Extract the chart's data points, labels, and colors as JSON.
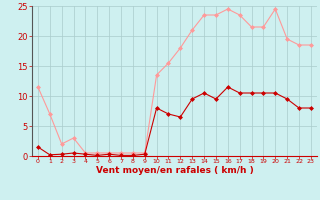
{
  "x": [
    0,
    1,
    2,
    3,
    4,
    5,
    6,
    7,
    8,
    9,
    10,
    11,
    12,
    13,
    14,
    15,
    16,
    17,
    18,
    19,
    20,
    21,
    22,
    23
  ],
  "y_dark": [
    1.5,
    0.2,
    0.3,
    0.5,
    0.3,
    0.1,
    0.3,
    0.1,
    0.1,
    0.3,
    8.0,
    7.0,
    6.5,
    9.5,
    10.5,
    9.5,
    11.5,
    10.5,
    10.5,
    10.5,
    10.5,
    9.5,
    8.0,
    8.0
  ],
  "y_light": [
    11.5,
    7.0,
    2.0,
    3.0,
    0.5,
    0.5,
    0.5,
    0.5,
    0.5,
    0.5,
    13.5,
    15.5,
    18.0,
    21.0,
    23.5,
    23.5,
    24.5,
    23.5,
    21.5,
    21.5,
    24.5,
    19.5,
    18.5,
    18.5
  ],
  "dark_color": "#cc0000",
  "light_color": "#ff9999",
  "bg_color": "#cef0f0",
  "grid_color": "#aacccc",
  "xlabel": "Vent moyen/en rafales ( km/h )",
  "ylim": [
    0,
    25
  ],
  "xlim": [
    -0.5,
    23.5
  ],
  "yticks": [
    0,
    5,
    10,
    15,
    20,
    25
  ],
  "xticks": [
    0,
    1,
    2,
    3,
    4,
    5,
    6,
    7,
    8,
    9,
    10,
    11,
    12,
    13,
    14,
    15,
    16,
    17,
    18,
    19,
    20,
    21,
    22,
    23
  ],
  "tick_color": "#cc0000",
  "marker": "D",
  "markersize": 2.0,
  "linewidth": 0.8,
  "xlabel_fontsize": 6.5,
  "xlabel_fontweight": "bold",
  "ytick_fontsize": 6,
  "xtick_fontsize": 4.5
}
